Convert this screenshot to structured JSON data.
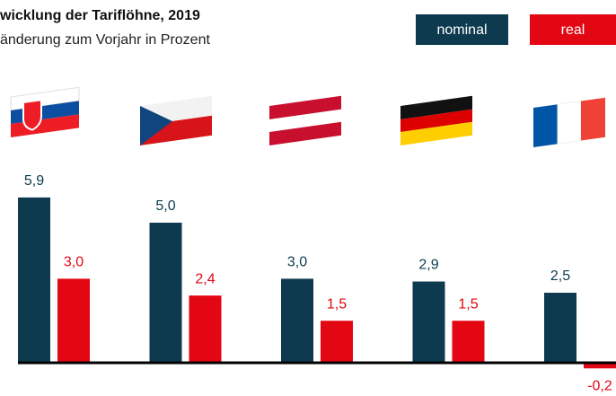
{
  "chart_data": {
    "type": "bar",
    "title": "wicklung der Tariflöhne, 2019",
    "subtitle": "änderung zum Vorjahr in Prozent",
    "categories": [
      null,
      null,
      null,
      null,
      null
    ],
    "series": [
      {
        "name": "nominal",
        "color": "#0d3a4f",
        "values": [
          5.9,
          5.0,
          3.0,
          2.9,
          2.5
        ],
        "value_labels": [
          "5,9",
          "5,0",
          "3,0",
          "2,9",
          "2,5"
        ]
      },
      {
        "name": "real",
        "color": "#e30613",
        "values": [
          3.0,
          2.4,
          1.5,
          1.5,
          -0.2
        ],
        "value_labels": [
          "3,0",
          "2,4",
          "1,5",
          "1,5",
          "-0,2"
        ]
      }
    ],
    "ylim": [
      -1,
      6
    ]
  }
}
